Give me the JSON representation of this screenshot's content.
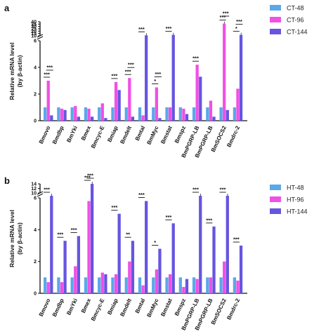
{
  "chart_data": [
    {
      "panel": "a",
      "type": "bar",
      "ylabel": [
        "Relative mRNA level",
        "(by β-actin)"
      ],
      "low_axis": {
        "range": [
          0,
          6
        ],
        "ticks": [
          "0",
          "2",
          "4",
          "6"
        ]
      },
      "high_axis": {
        "range": [
          10,
          40
        ],
        "ticks": [
          "10",
          "15",
          "20",
          "25",
          "30",
          "35",
          "40"
        ]
      },
      "categories": [
        "Bmovo",
        "Bmdbp",
        "BmYki",
        "Bmex",
        "Bmcyc-E",
        "Bmiap",
        "Bmdelt",
        "Bmtal",
        "BmMyc",
        "Bmstat",
        "Bmspz",
        "BmPGRP-LB",
        "BmPGRP-LB",
        "BmSOCS2",
        "Bmdrc-2"
      ],
      "series": [
        {
          "name": "CT-48",
          "color": "#5aa8e8",
          "values": [
            1,
            1,
            1,
            1,
            1,
            1,
            1,
            1,
            1,
            1,
            1,
            1,
            1,
            1,
            1
          ]
        },
        {
          "name": "CT-96",
          "color": "#f050e6",
          "values": [
            3.0,
            0.9,
            1.1,
            0.9,
            1.3,
            2.9,
            3.2,
            0.4,
            2.5,
            1.0,
            0.9,
            4.2,
            1.5,
            36,
            2.4
          ]
        },
        {
          "name": "CT-144",
          "color": "#6655e0",
          "values": [
            0.4,
            0.8,
            0.3,
            0.3,
            0.2,
            2.3,
            0.3,
            11,
            0.2,
            12,
            0.5,
            3.3,
            0.3,
            0.8,
            12
          ]
        }
      ],
      "significance": [
        {
          "index": 0,
          "labels": [
            "***",
            "***"
          ]
        },
        {
          "index": 5,
          "labels": [
            "***"
          ]
        },
        {
          "index": 6,
          "labels": [
            "***",
            "***"
          ]
        },
        {
          "index": 7,
          "labels": [
            "***"
          ]
        },
        {
          "index": 8,
          "labels": [
            "*",
            "***"
          ]
        },
        {
          "index": 9,
          "labels": [
            "***"
          ]
        },
        {
          "index": 11,
          "labels": [
            "***"
          ]
        },
        {
          "index": 13,
          "labels": [
            "***",
            "***"
          ]
        },
        {
          "index": 14,
          "labels": [
            "*",
            "***"
          ]
        }
      ]
    },
    {
      "panel": "b",
      "type": "bar",
      "ylabel": [
        "Relative mRNA level",
        "(by β-actin)"
      ],
      "low_axis": {
        "range": [
          0,
          6
        ],
        "ticks": [
          "0",
          "2",
          "4",
          "6"
        ]
      },
      "high_axis": {
        "range": [
          10,
          14
        ],
        "ticks": [
          "10",
          "12",
          "14"
        ]
      },
      "categories": [
        "Bmovo",
        "Bmdbp",
        "BmYki",
        "Bmex",
        "Bmcyc-E",
        "Bmiap",
        "Bmdelt",
        "Bmtal",
        "BmMyc",
        "Bmstat",
        "Bmspz",
        "BmPGRP-LB",
        "BmPGRP-LB",
        "BmSOCS2",
        "Bmdrc-2"
      ],
      "series": [
        {
          "name": "HT-48",
          "color": "#5aa8e8",
          "values": [
            1,
            1,
            1,
            1,
            1,
            1,
            1,
            1,
            1,
            1,
            1,
            1,
            1,
            1,
            1
          ]
        },
        {
          "name": "HT-96",
          "color": "#f050e6",
          "values": [
            0.7,
            0.7,
            1.7,
            5.8,
            1.3,
            1.2,
            2.0,
            0.5,
            1.5,
            1.2,
            0.4,
            0.9,
            1.0,
            2.0,
            0.8
          ]
        },
        {
          "name": "HT-144",
          "color": "#6655e0",
          "values": [
            7.5,
            3.3,
            3.6,
            14,
            1.2,
            5.0,
            3.3,
            5.8,
            2.8,
            4.4,
            0.9,
            6.5,
            4.2,
            7.5,
            3.0
          ]
        }
      ],
      "significance": [
        {
          "index": 0,
          "labels": [
            "***"
          ]
        },
        {
          "index": 1,
          "labels": [
            "***"
          ]
        },
        {
          "index": 2,
          "labels": [
            "***"
          ]
        },
        {
          "index": 3,
          "labels": [
            "***",
            "***"
          ]
        },
        {
          "index": 5,
          "labels": [
            "***"
          ]
        },
        {
          "index": 6,
          "labels": [
            "**"
          ]
        },
        {
          "index": 7,
          "labels": [
            "***"
          ]
        },
        {
          "index": 8,
          "labels": [
            "*"
          ]
        },
        {
          "index": 9,
          "labels": [
            "***"
          ]
        },
        {
          "index": 11,
          "labels": [
            "***"
          ]
        },
        {
          "index": 12,
          "labels": [
            "***"
          ]
        },
        {
          "index": 13,
          "labels": [
            "***"
          ]
        },
        {
          "index": 14,
          "labels": [
            "***"
          ]
        }
      ]
    }
  ]
}
